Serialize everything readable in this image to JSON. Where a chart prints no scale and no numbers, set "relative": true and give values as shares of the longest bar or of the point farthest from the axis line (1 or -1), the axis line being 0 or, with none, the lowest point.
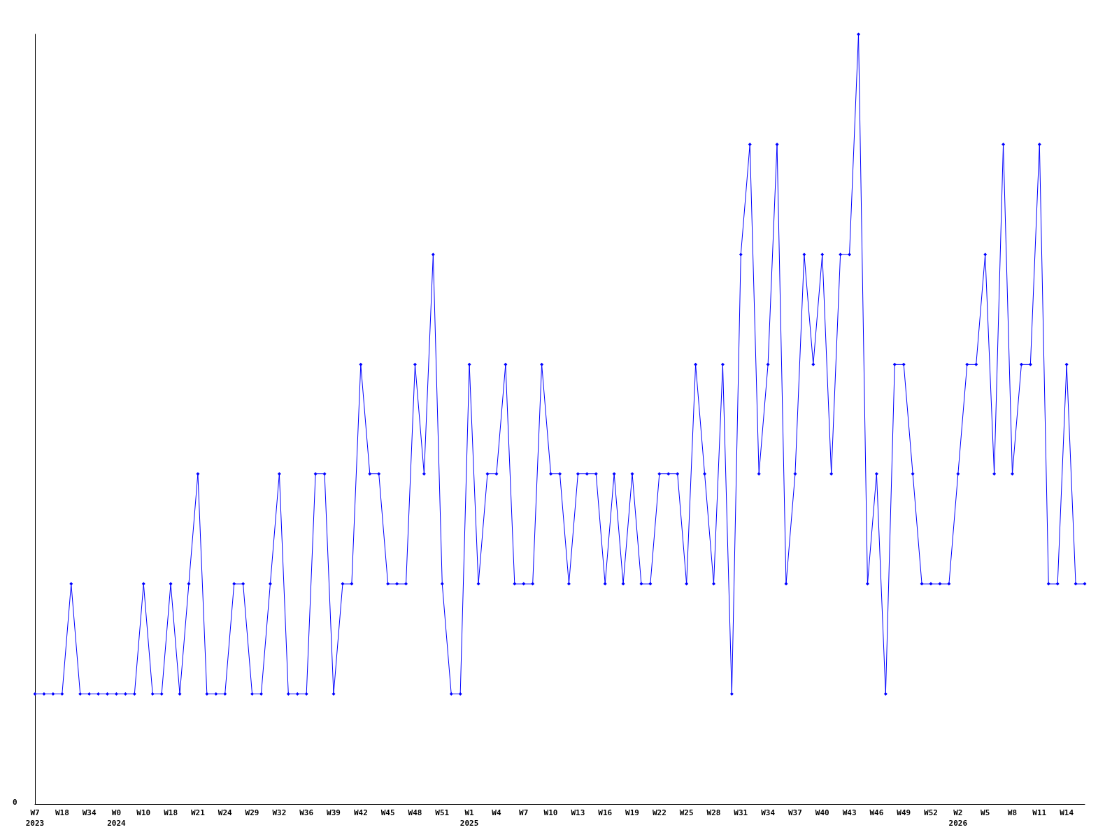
{
  "chart_data": {
    "type": "line",
    "relative": true,
    "marker": "diamond",
    "line_style": "solid",
    "grid": false,
    "annotations": [
      "0"
    ],
    "categories": [
      "W7\n2023",
      null,
      null,
      "W18",
      null,
      null,
      "W34",
      null,
      null,
      "W0\n2024",
      null,
      null,
      "W10",
      null,
      null,
      "W18",
      null,
      null,
      "W21",
      null,
      null,
      "W24",
      null,
      null,
      "W29",
      null,
      null,
      "W32",
      null,
      null,
      "W36",
      null,
      null,
      "W39",
      null,
      null,
      "W42",
      null,
      null,
      "W45",
      null,
      null,
      "W48",
      null,
      null,
      "W51",
      null,
      null,
      "W1\n2025",
      null,
      null,
      "W4",
      null,
      null,
      "W7",
      null,
      null,
      "W10",
      null,
      null,
      "W13",
      null,
      null,
      "W16",
      null,
      null,
      "W19",
      null,
      null,
      "W22",
      null,
      null,
      "W25",
      null,
      null,
      "W28",
      null,
      null,
      "W31",
      null,
      null,
      "W34",
      null,
      null,
      "W37",
      null,
      null,
      "W40",
      null,
      null,
      "W43",
      null,
      null,
      "W46",
      null,
      null,
      "W49",
      null,
      null,
      "W52",
      null,
      null,
      "W2\n2026",
      null,
      null,
      "W5",
      null,
      null,
      "W8",
      null,
      null,
      "W11",
      null,
      null,
      "W14",
      null,
      null
    ],
    "series": [
      {
        "color": "#0000ff",
        "values": [
          0.143,
          0.143,
          0.143,
          0.143,
          0.286,
          0.143,
          0.143,
          0.143,
          0.143,
          0.143,
          0.143,
          0.143,
          0.286,
          0.143,
          0.143,
          0.286,
          0.143,
          0.286,
          0.429,
          0.143,
          0.143,
          0.143,
          0.286,
          0.286,
          0.143,
          0.143,
          0.286,
          0.429,
          0.143,
          0.143,
          0.143,
          0.429,
          0.429,
          0.143,
          0.286,
          0.286,
          0.571,
          0.429,
          0.429,
          0.286,
          0.286,
          0.286,
          0.571,
          0.429,
          0.714,
          0.286,
          0.143,
          0.143,
          0.571,
          0.286,
          0.429,
          0.429,
          0.571,
          0.286,
          0.286,
          0.286,
          0.571,
          0.429,
          0.429,
          0.286,
          0.429,
          0.429,
          0.429,
          0.286,
          0.429,
          0.286,
          0.429,
          0.286,
          0.286,
          0.429,
          0.429,
          0.429,
          0.286,
          0.571,
          0.429,
          0.286,
          0.571,
          0.143,
          0.714,
          0.857,
          0.429,
          0.571,
          0.857,
          0.286,
          0.429,
          0.714,
          0.571,
          0.714,
          0.429,
          0.714,
          0.714,
          1,
          0.286,
          0.429,
          0.143,
          0.571,
          0.571,
          0.429,
          0.286,
          0.286,
          0.286,
          0.286,
          0.429,
          0.571,
          0.571,
          0.714,
          0.429,
          0.857,
          0.429,
          0.571,
          0.571,
          0.857,
          0.286,
          0.286,
          0.571,
          0.286,
          0.286
        ]
      }
    ]
  }
}
